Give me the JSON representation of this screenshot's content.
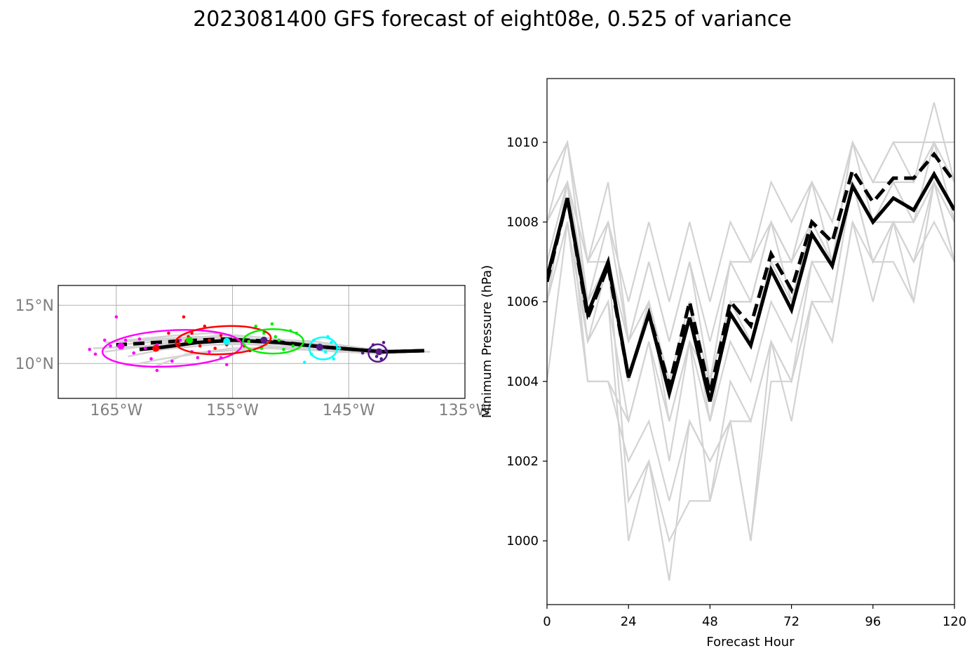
{
  "title": "2023081400 GFS forecast of eight08e, 0.525 of variance",
  "colors": {
    "member": "#d3d3d3",
    "mean": "#000000",
    "ellipses": [
      "#ff00ff",
      "#ff0000",
      "#00ee00",
      "#00ffff",
      "#551a8b"
    ],
    "map_tick_text": "#808080"
  },
  "chart_data": [
    {
      "type": "line",
      "name": "track-map",
      "xlim": [
        -170,
        -135
      ],
      "ylim": [
        7,
        16.7
      ],
      "grid": true,
      "xticks": [
        -165,
        -155,
        -145,
        -135
      ],
      "xtick_labels": [
        "165°W",
        "155°W",
        "145°W",
        "135°W"
      ],
      "yticks": [
        10,
        15
      ],
      "ytick_labels": [
        "10°N",
        "15°N"
      ],
      "members": [
        [
          [
            -142,
            11.0
          ],
          [
            -147,
            11.4
          ],
          [
            -152,
            11.9
          ],
          [
            -157,
            12.2
          ],
          [
            -161,
            11.9
          ],
          [
            -165,
            11.6
          ]
        ],
        [
          [
            -142,
            10.9
          ],
          [
            -147,
            11.3
          ],
          [
            -152,
            11.7
          ],
          [
            -157,
            11.6
          ],
          [
            -161,
            11.2
          ],
          [
            -164,
            10.6
          ]
        ],
        [
          [
            -142,
            11.1
          ],
          [
            -147,
            11.6
          ],
          [
            -152,
            12.2
          ],
          [
            -157,
            12.6
          ],
          [
            -160,
            12.4
          ],
          [
            -164,
            12.0
          ]
        ],
        [
          [
            -142,
            10.8
          ],
          [
            -147,
            11.1
          ],
          [
            -152,
            11.3
          ],
          [
            -157,
            11.0
          ],
          [
            -161,
            10.4
          ],
          [
            -163,
            10.0
          ]
        ],
        [
          [
            -142,
            11.2
          ],
          [
            -147,
            11.5
          ],
          [
            -152,
            12.0
          ],
          [
            -156,
            12.4
          ],
          [
            -160,
            12.1
          ],
          [
            -166,
            11.8
          ]
        ],
        [
          [
            -142,
            11.0
          ],
          [
            -148,
            11.2
          ],
          [
            -153,
            11.6
          ],
          [
            -157,
            11.9
          ],
          [
            -162,
            11.5
          ],
          [
            -167,
            11.3
          ]
        ],
        [
          [
            -141,
            10.9
          ],
          [
            -146,
            11.0
          ],
          [
            -150,
            11.4
          ],
          [
            -155,
            11.3
          ],
          [
            -159,
            10.8
          ],
          [
            -162,
            9.6
          ]
        ],
        [
          [
            -140,
            11.1
          ],
          [
            -145,
            11.3
          ],
          [
            -150,
            11.8
          ],
          [
            -154,
            12.0
          ],
          [
            -158,
            11.9
          ],
          [
            -163,
            11.4
          ]
        ],
        [
          [
            -138,
            11.0
          ],
          [
            -143,
            11.2
          ],
          [
            -148,
            11.9
          ],
          [
            -153,
            12.1
          ],
          [
            -158,
            12.3
          ],
          [
            -165,
            11.9
          ]
        ],
        [
          [
            -139,
            11.1
          ],
          [
            -144,
            11.0
          ],
          [
            -149,
            11.6
          ],
          [
            -154,
            12.2
          ],
          [
            -159,
            12.0
          ],
          [
            -166,
            11.0
          ]
        ]
      ],
      "mean_solid": [
        [
          -138.5,
          11.1
        ],
        [
          -142,
          11.0
        ],
        [
          -147,
          11.4
        ],
        [
          -151,
          11.8
        ],
        [
          -155,
          12.0
        ],
        [
          -158,
          11.8
        ],
        [
          -161,
          11.4
        ],
        [
          -163,
          11.2
        ]
      ],
      "mean_dashed": [
        [
          -138.5,
          11.1
        ],
        [
          -142,
          11.0
        ],
        [
          -147,
          11.4
        ],
        [
          -151.5,
          11.9
        ],
        [
          -156,
          12.1
        ],
        [
          -160,
          11.9
        ],
        [
          -165,
          11.6
        ]
      ],
      "ellipses": [
        {
          "center": [
            -160.2,
            11.3
          ],
          "rx_deg": 6.0,
          "ry_deg": 1.55,
          "rotation_deg": -3
        },
        {
          "center": [
            -155.8,
            12.0
          ],
          "rx_deg": 4.1,
          "ry_deg": 1.2,
          "rotation_deg": -3
        },
        {
          "center": [
            -151.5,
            11.9
          ],
          "rx_deg": 2.6,
          "ry_deg": 1.05,
          "rotation_deg": 0
        },
        {
          "center": [
            -147.2,
            11.3
          ],
          "rx_deg": 1.2,
          "ry_deg": 0.95,
          "rotation_deg": 0
        },
        {
          "center": [
            -142.5,
            10.9
          ],
          "rx_deg": 0.8,
          "ry_deg": 0.75,
          "rotation_deg": 0
        }
      ],
      "points": [
        [
          [
            -165.0,
            14.0
          ],
          [
            -163.0,
            12.1
          ],
          [
            -161.5,
            11.6
          ],
          [
            -164.8,
            11.5
          ],
          [
            -162.0,
            10.4
          ],
          [
            -166.8,
            10.8
          ],
          [
            -161.5,
            9.4
          ],
          [
            -158.0,
            10.5
          ],
          [
            -156.0,
            10.5
          ],
          [
            -158.5,
            11.0
          ],
          [
            -167.3,
            11.2
          ],
          [
            -163.5,
            10.9
          ],
          [
            -165.5,
            11.5
          ],
          [
            -159.5,
            12.0
          ],
          [
            -157.0,
            11.0
          ],
          [
            -155.5,
            9.9
          ],
          [
            -160.2,
            10.2
          ],
          [
            -166.0,
            12.0
          ],
          [
            -162.5,
            11.3
          ],
          [
            -164.2,
            12.0
          ]
        ],
        [
          [
            -159.2,
            14.0
          ],
          [
            -157.4,
            13.2
          ],
          [
            -158.5,
            12.6
          ],
          [
            -160.5,
            12.6
          ],
          [
            -157.0,
            12.0
          ],
          [
            -159.0,
            11.9
          ],
          [
            -155.5,
            11.6
          ],
          [
            -153.5,
            11.1
          ],
          [
            -156.5,
            11.3
          ],
          [
            -158.8,
            12.3
          ],
          [
            -154.5,
            12.0
          ],
          [
            -157.8,
            11.5
          ],
          [
            -159.6,
            11.7
          ],
          [
            -156.0,
            12.4
          ],
          [
            -154.0,
            11.5
          ]
        ],
        [
          [
            -153.0,
            13.2
          ],
          [
            -151.6,
            13.4
          ],
          [
            -152.3,
            12.6
          ],
          [
            -150.0,
            12.8
          ],
          [
            -149.5,
            12.6
          ],
          [
            -151.0,
            12.0
          ],
          [
            -152.5,
            11.3
          ],
          [
            -150.6,
            11.2
          ],
          [
            -153.6,
            11.9
          ],
          [
            -149.8,
            11.5
          ],
          [
            -151.3,
            12.3
          ],
          [
            -152.0,
            11.8
          ]
        ],
        [
          [
            -147.5,
            11.6
          ],
          [
            -146.8,
            12.3
          ],
          [
            -148.2,
            10.8
          ],
          [
            -146.3,
            10.4
          ],
          [
            -148.8,
            10.1
          ],
          [
            -147.0,
            11.0
          ],
          [
            -145.8,
            11.3
          ],
          [
            -148.0,
            12.0
          ],
          [
            -147.3,
            11.2
          ],
          [
            -146.5,
            11.8
          ]
        ],
        [
          [
            -142.9,
            11.6
          ],
          [
            -142.0,
            11.8
          ],
          [
            -143.8,
            10.9
          ],
          [
            -142.2,
            10.4
          ],
          [
            -141.8,
            11.1
          ],
          [
            -142.6,
            10.6
          ],
          [
            -143.2,
            11.2
          ],
          [
            -142.4,
            11.0
          ]
        ]
      ],
      "big_points": [
        [
          -164.6,
          11.5
        ],
        [
          -161.6,
          11.3
        ],
        [
          -158.7,
          12.0
        ],
        [
          -155.5,
          11.9
        ],
        [
          -152.3,
          12.0
        ],
        [
          -147.5,
          11.4
        ],
        [
          -142.4,
          11.0
        ]
      ]
    },
    {
      "type": "line",
      "name": "pressure",
      "xlabel": "Forecast Hour",
      "ylabel": "Minimum Pressure (hPa)",
      "xlim": [
        0,
        120
      ],
      "ylim": [
        998.4,
        1011.6
      ],
      "xticks": [
        0,
        24,
        48,
        72,
        96,
        120
      ],
      "yticks": [
        1000,
        1002,
        1004,
        1006,
        1008,
        1010
      ],
      "x": [
        0,
        6,
        12,
        18,
        24,
        30,
        36,
        42,
        48,
        54,
        60,
        66,
        72,
        78,
        84,
        90,
        96,
        102,
        108,
        114,
        120
      ],
      "members": [
        [
          1009,
          1010,
          1007,
          1008,
          1006,
          1008,
          1006,
          1008,
          1006,
          1008,
          1007,
          1009,
          1008,
          1009,
          1008,
          1010,
          1009,
          1010,
          1010,
          1010,
          1010
        ],
        [
          1008,
          1010,
          1006,
          1008,
          1005,
          1007,
          1005,
          1007,
          1005,
          1007,
          1007,
          1008,
          1007,
          1009,
          1008,
          1010,
          1009,
          1009,
          1009,
          1011,
          1009
        ],
        [
          1007,
          1009,
          1005,
          1007,
          1004,
          1006,
          1004,
          1006,
          1004,
          1006,
          1005,
          1007,
          1007,
          1008,
          1007,
          1009,
          1008,
          1009,
          1008,
          1009,
          1008
        ],
        [
          1006,
          1009,
          1004,
          1004,
          1003,
          1005,
          1002,
          1005,
          1003,
          1005,
          1004,
          1006,
          1005,
          1007,
          1006,
          1009,
          1008,
          1008,
          1008,
          1009,
          1007
        ],
        [
          1004,
          1008,
          1004,
          1004,
          1002,
          1003,
          1001,
          1003,
          1002,
          1003,
          1003,
          1005,
          1004,
          1006,
          1005,
          1008,
          1007,
          1008,
          1007,
          1009,
          1007
        ],
        [
          1007,
          1009,
          1006,
          1007,
          1005,
          1006,
          1004,
          1006,
          1004,
          1006,
          1006,
          1008,
          1007,
          1008,
          1007,
          1009,
          1008,
          1008,
          1008,
          1010,
          1008
        ],
        [
          1006,
          1008,
          1005,
          1006,
          1003,
          1005,
          1003,
          1005,
          1001,
          1004,
          1003,
          1005,
          1003,
          1006,
          1006,
          1009,
          1007,
          1007,
          1006,
          1009,
          1008
        ],
        [
          1007,
          1009,
          1006,
          1007,
          1001,
          1002,
          999,
          1003,
          1002,
          1003,
          1000,
          1004,
          1004,
          1007,
          1007,
          1009,
          1007,
          1008,
          1007,
          1008,
          1007
        ],
        [
          1008,
          1009,
          1007,
          1007,
          1004,
          1006,
          1003,
          1005,
          1004,
          1006,
          1006,
          1008,
          1006,
          1008,
          1007,
          1010,
          1008,
          1009,
          1008,
          1009,
          1008
        ],
        [
          1009,
          1010,
          1007,
          1009,
          1005,
          1007,
          1005,
          1007,
          1004,
          1007,
          1006,
          1008,
          1007,
          1009,
          1007,
          1010,
          1009,
          1010,
          1009,
          1010,
          1009
        ],
        [
          1006,
          1009,
          1005,
          1006,
          1000,
          1002,
          1000,
          1001,
          1001,
          1003,
          1000,
          1005,
          1004,
          1006,
          1005,
          1008,
          1006,
          1008,
          1006,
          1009,
          1007
        ],
        [
          1008,
          1009,
          1006,
          1007,
          1004,
          1006,
          1004,
          1006,
          1003,
          1006,
          1005,
          1007,
          1006,
          1008,
          1007,
          1009,
          1007,
          1008,
          1008,
          1010,
          1009
        ]
      ],
      "mean_solid": [
        1006.6,
        1008.6,
        1005.7,
        1007.0,
        1004.1,
        1005.7,
        1003.7,
        1005.6,
        1003.5,
        1005.7,
        1004.9,
        1006.8,
        1005.8,
        1007.7,
        1006.9,
        1008.9,
        1008.0,
        1008.6,
        1008.3,
        1009.2,
        1008.3
      ],
      "mean_dashed": [
        1006.5,
        1008.6,
        1005.6,
        1006.9,
        1004.1,
        1005.7,
        1003.9,
        1006.0,
        1003.7,
        1006.0,
        1005.4,
        1007.2,
        1006.3,
        1008.0,
        1007.5,
        1009.3,
        1008.5,
        1009.1,
        1009.1,
        1009.7,
        1009.0
      ]
    }
  ]
}
